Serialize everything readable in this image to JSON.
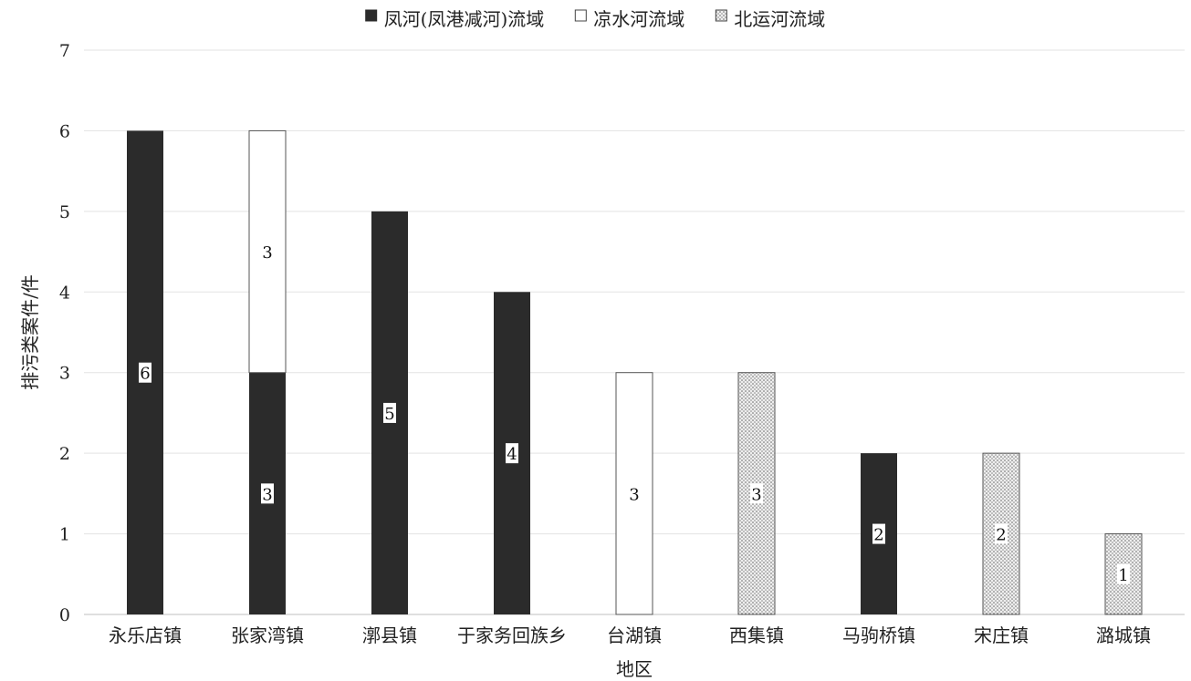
{
  "chart_data": {
    "type": "bar",
    "stacked": true,
    "categories": [
      "永乐店镇",
      "张家湾镇",
      "漷县镇",
      "于家务回族乡",
      "台湖镇",
      "西集镇",
      "马驹桥镇",
      "宋庄镇",
      "潞城镇"
    ],
    "series": [
      {
        "name": "凤河(凤港减河)流域",
        "fill": "#2b2b2b",
        "pattern": "solid",
        "values": [
          6,
          3,
          5,
          4,
          0,
          0,
          2,
          0,
          0
        ]
      },
      {
        "name": "凉水河流域",
        "fill": "#ffffff",
        "pattern": "outline",
        "values": [
          0,
          3,
          0,
          0,
          3,
          0,
          0,
          0,
          0
        ]
      },
      {
        "name": "北运河流域",
        "fill": "#e6e6e6",
        "pattern": "dots",
        "values": [
          0,
          0,
          0,
          0,
          0,
          3,
          0,
          2,
          1
        ]
      }
    ],
    "xlabel": "地区",
    "ylabel": "排污类案件/件",
    "ylim": [
      0,
      7
    ],
    "yticks": [
      0,
      1,
      2,
      3,
      4,
      5,
      6,
      7
    ],
    "grid": true,
    "legend_position": "top-center"
  }
}
